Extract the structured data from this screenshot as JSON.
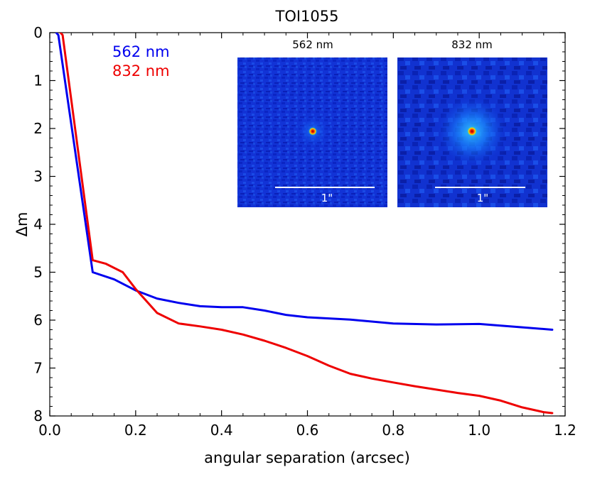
{
  "chart_data": {
    "type": "line",
    "title": "TOI1055",
    "xlabel": "angular separation (arcsec)",
    "ylabel": "Δm",
    "xlim": [
      0.0,
      1.2
    ],
    "ylim": [
      8,
      0
    ],
    "y_inverted": true,
    "xticks": [
      0.0,
      0.2,
      0.4,
      0.6,
      0.8,
      1.0,
      1.2
    ],
    "xtick_labels": [
      "0.0",
      "0.2",
      "0.4",
      "0.6",
      "0.8",
      "1.0",
      "1.2"
    ],
    "yticks": [
      0,
      1,
      2,
      3,
      4,
      5,
      6,
      7,
      8
    ],
    "ytick_labels": [
      "0",
      "1",
      "2",
      "3",
      "4",
      "5",
      "6",
      "7",
      "8"
    ],
    "grid": false,
    "legend_position": "top-left",
    "series": [
      {
        "name": "562 nm",
        "color": "#0000ee",
        "x": [
          0.015,
          0.02,
          0.1,
          0.15,
          0.2,
          0.25,
          0.3,
          0.35,
          0.4,
          0.45,
          0.5,
          0.55,
          0.6,
          0.7,
          0.8,
          0.9,
          1.0,
          1.1,
          1.17
        ],
        "y": [
          0.0,
          0.05,
          5.0,
          5.15,
          5.38,
          5.55,
          5.64,
          5.71,
          5.73,
          5.73,
          5.8,
          5.89,
          5.94,
          5.99,
          6.07,
          6.09,
          6.08,
          6.15,
          6.2
        ]
      },
      {
        "name": "832 nm",
        "color": "#ee0000",
        "x": [
          0.025,
          0.03,
          0.1,
          0.13,
          0.17,
          0.2,
          0.25,
          0.3,
          0.35,
          0.4,
          0.45,
          0.5,
          0.55,
          0.6,
          0.65,
          0.7,
          0.75,
          0.8,
          0.85,
          0.9,
          0.95,
          1.0,
          1.05,
          1.1,
          1.15,
          1.17
        ],
        "y": [
          0.0,
          0.05,
          4.75,
          4.82,
          5.0,
          5.35,
          5.85,
          6.07,
          6.13,
          6.2,
          6.3,
          6.43,
          6.58,
          6.75,
          6.95,
          7.12,
          7.22,
          7.3,
          7.38,
          7.45,
          7.52,
          7.58,
          7.68,
          7.82,
          7.92,
          7.94
        ]
      }
    ],
    "insets": [
      {
        "title": "562 nm",
        "scale_label": "1\""
      },
      {
        "title": "832 nm",
        "scale_label": "1\""
      }
    ]
  }
}
